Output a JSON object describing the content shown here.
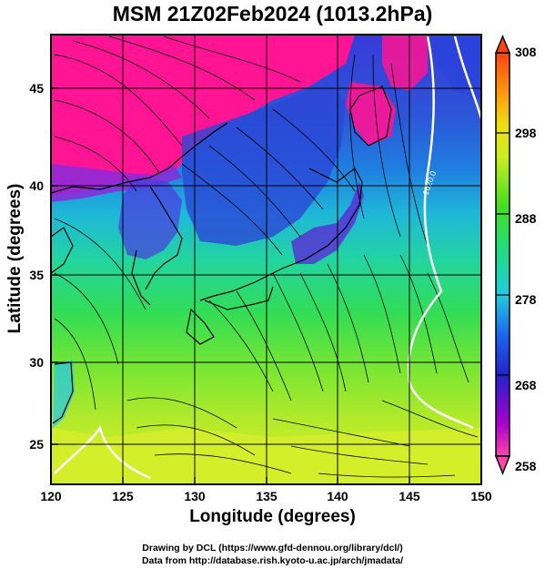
{
  "title": "MSM 21Z02Feb2024 (1013.2hPa)",
  "axes": {
    "xlabel": "Longitude (degrees)",
    "ylabel": "Latitude  (degrees)",
    "xticks": [
      "120",
      "125",
      "130",
      "135",
      "140",
      "145",
      "150"
    ],
    "yticks": [
      "25",
      "30",
      "35",
      "40",
      "45"
    ],
    "xlim": [
      120,
      150
    ],
    "ylim": [
      22.5,
      47.6
    ]
  },
  "colorbar": {
    "ticks": [
      "258",
      "268",
      "278",
      "288",
      "298",
      "308"
    ],
    "range": [
      258,
      308
    ]
  },
  "contour_labels": [
    "1020.0"
  ],
  "credits": {
    "line1": "Drawing by DCL (https://www.gfd-dennou.org/library/dcl/)",
    "line2": "Data from http://database.rish.kyoto-u.ac.jp/arch/jmadata/"
  },
  "colors": {
    "land_cold": "#ff1493",
    "cold_sea": "#2233cc",
    "mid": "#22dd66",
    "warm": "#ccee22",
    "contour": "#ffffff"
  }
}
